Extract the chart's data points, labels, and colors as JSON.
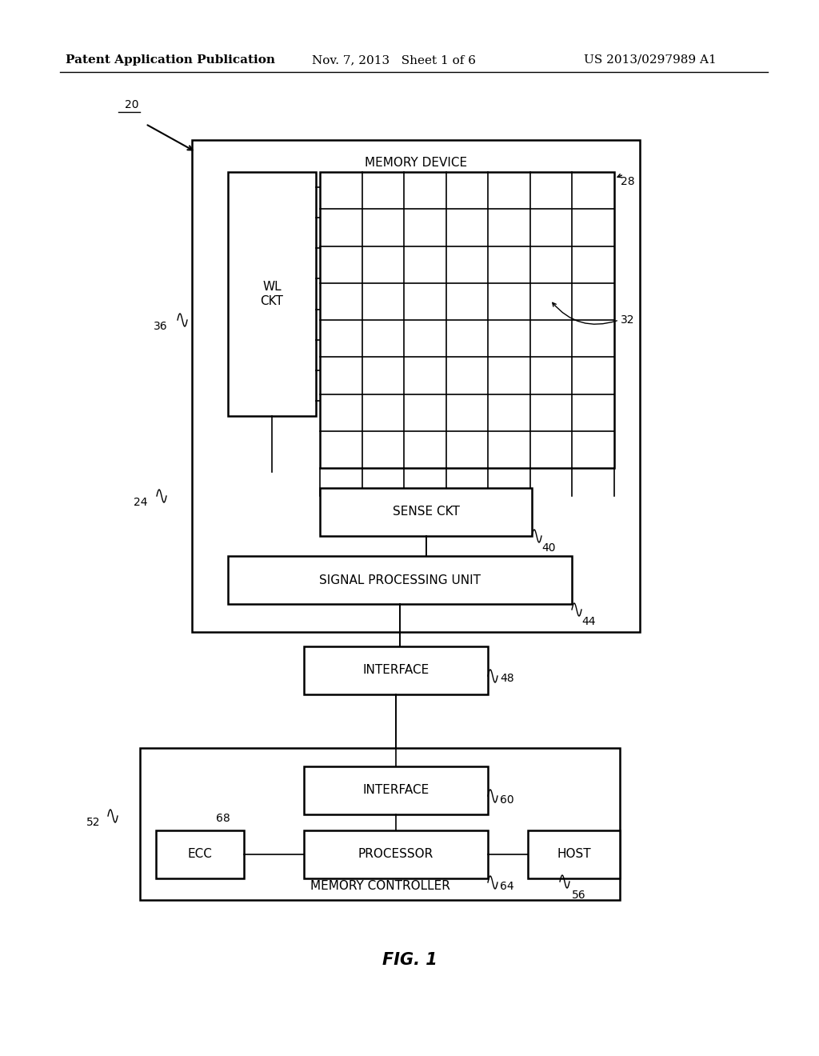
{
  "bg_color": "#ffffff",
  "header_left": "Patent Application Publication",
  "header_mid": "Nov. 7, 2013   Sheet 1 of 6",
  "header_right": "US 2013/0297989 A1",
  "fig_label": "FIG. 1",
  "memory_device_label": "MEMORY DEVICE",
  "memory_controller_label": "MEMORY CONTROLLER",
  "wl_ckt_label": "WL\nCKT",
  "sense_ckt_label": "SENSE CKT",
  "signal_processing_label": "SIGNAL PROCESSING UNIT",
  "interface_top_label": "INTERFACE",
  "interface_bot_label": "INTERFACE",
  "processor_label": "PROCESSOR",
  "ecc_label": "ECC",
  "host_label": "HOST",
  "label_20": "20",
  "label_24": "24",
  "label_28": "28",
  "label_32": "32",
  "label_36": "36",
  "label_40": "40",
  "label_44": "44",
  "label_48": "48",
  "label_52": "52",
  "label_56": "56",
  "label_60": "60",
  "label_64": "64",
  "label_68": "68",
  "grid_cols": 7,
  "grid_rows": 8,
  "wl_lines": 8
}
